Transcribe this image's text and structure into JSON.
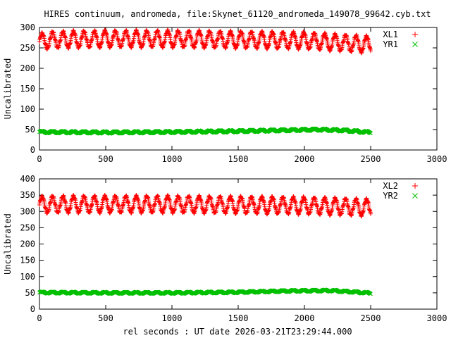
{
  "figure": {
    "title": "HIRES continuum, andromeda, file:Skynet_61120_andromeda_149078_99642.cyb.txt",
    "xlabel": "rel seconds : UT date 2026-03-21T23:29:44.000"
  },
  "chart_data": [
    {
      "type": "scatter",
      "ylabel": "Uncalibrated",
      "xlim": [
        0,
        3000
      ],
      "ylim": [
        0,
        300
      ],
      "xticks": [
        0,
        500,
        1000,
        1500,
        2000,
        2500,
        3000
      ],
      "yticks": [
        0,
        50,
        100,
        150,
        200,
        250,
        300
      ],
      "legend": "top-right",
      "series": [
        {
          "name": "XL1",
          "marker": "+",
          "color": "#ff0000",
          "x_range": [
            0,
            2500
          ],
          "oscillation_period": 79,
          "points": [
            [
              0,
              265
            ],
            [
              100,
              270
            ],
            [
              500,
              272
            ],
            [
              1000,
              272
            ],
            [
              1500,
              270
            ],
            [
              2000,
              268
            ],
            [
              2500,
              258
            ]
          ],
          "amplitude": 22
        },
        {
          "name": "YR1",
          "marker": "x",
          "color": "#00c000",
          "x_range": [
            0,
            2500
          ],
          "oscillation_period": 79,
          "points": [
            [
              0,
              44
            ],
            [
              500,
              43
            ],
            [
              1000,
              44
            ],
            [
              1500,
              46
            ],
            [
              1800,
              48
            ],
            [
              2100,
              50
            ],
            [
              2300,
              48
            ],
            [
              2500,
              43
            ]
          ],
          "amplitude": 3
        }
      ]
    },
    {
      "type": "scatter",
      "ylabel": "Uncalibrated",
      "xlim": [
        0,
        3000
      ],
      "ylim": [
        0,
        400
      ],
      "xticks": [
        0,
        500,
        1000,
        1500,
        2000,
        2500,
        3000
      ],
      "yticks": [
        0,
        50,
        100,
        150,
        200,
        250,
        300,
        350,
        400
      ],
      "legend": "top-right",
      "series": [
        {
          "name": "XL2",
          "marker": "+",
          "color": "#ff0000",
          "x_range": [
            0,
            2500
          ],
          "oscillation_period": 79,
          "points": [
            [
              0,
              320
            ],
            [
              100,
              322
            ],
            [
              500,
              322
            ],
            [
              1000,
              322
            ],
            [
              1500,
              320
            ],
            [
              2000,
              318
            ],
            [
              2500,
              312
            ]
          ],
          "amplitude": 28
        },
        {
          "name": "YR2",
          "marker": "x",
          "color": "#00c000",
          "x_range": [
            0,
            2500
          ],
          "oscillation_period": 79,
          "points": [
            [
              0,
              51
            ],
            [
              500,
              50
            ],
            [
              1000,
              50
            ],
            [
              1500,
              52
            ],
            [
              1900,
              56
            ],
            [
              2200,
              57
            ],
            [
              2400,
              52
            ],
            [
              2500,
              49
            ]
          ],
          "amplitude": 3
        }
      ]
    }
  ]
}
